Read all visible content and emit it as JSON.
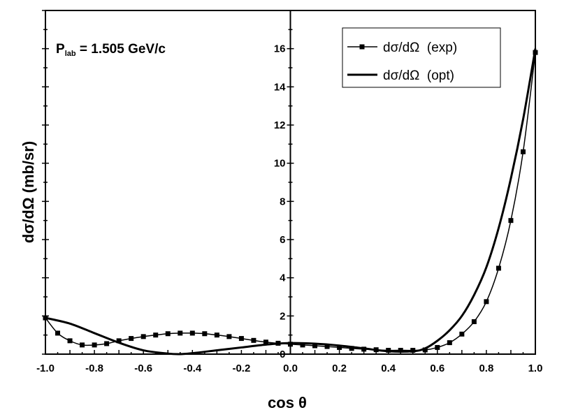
{
  "chart_data": {
    "type": "line",
    "title": "",
    "annotation": {
      "main": "P",
      "sub": "lab",
      "rest": " = 1.505 GeV/c"
    },
    "xlabel": "cos θ",
    "ylabel": "dσ/dΩ (mb/sr)",
    "xlim": [
      -1.0,
      1.0
    ],
    "ylim": [
      0,
      18
    ],
    "x_ticks": [
      -1.0,
      -0.8,
      -0.6,
      -0.4,
      -0.2,
      0.0,
      0.2,
      0.4,
      0.6,
      0.8,
      1.0
    ],
    "x_tick_labels": [
      "-1.0",
      "-0.8",
      "-0.6",
      "-0.4",
      "-0.2",
      "0.0",
      "0.2",
      "0.4",
      "0.6",
      "0.8",
      "1.0"
    ],
    "y_ticks": [
      0,
      2,
      4,
      6,
      8,
      10,
      12,
      14,
      16
    ],
    "y_tick_labels": [
      "0",
      "2",
      "4",
      "6",
      "8",
      "10",
      "12",
      "14",
      "16"
    ],
    "grid": false,
    "legend_position": "top-right",
    "series": [
      {
        "name": "dσ/dΩ  (exp)",
        "style": "line-with-square-markers",
        "x": [
          -1.0,
          -0.95,
          -0.9,
          -0.85,
          -0.8,
          -0.75,
          -0.7,
          -0.65,
          -0.6,
          -0.55,
          -0.5,
          -0.45,
          -0.4,
          -0.35,
          -0.3,
          -0.25,
          -0.2,
          -0.15,
          -0.1,
          -0.05,
          0.0,
          0.05,
          0.1,
          0.15,
          0.2,
          0.25,
          0.3,
          0.35,
          0.4,
          0.45,
          0.5,
          0.55,
          0.6,
          0.65,
          0.7,
          0.75,
          0.8,
          0.85,
          0.9,
          0.95,
          1.0
        ],
        "y": [
          1.9,
          1.1,
          0.7,
          0.48,
          0.48,
          0.55,
          0.7,
          0.82,
          0.92,
          1.0,
          1.07,
          1.1,
          1.1,
          1.07,
          1.0,
          0.92,
          0.82,
          0.72,
          0.63,
          0.57,
          0.52,
          0.48,
          0.44,
          0.4,
          0.35,
          0.3,
          0.26,
          0.23,
          0.2,
          0.2,
          0.2,
          0.22,
          0.35,
          0.6,
          1.05,
          1.7,
          2.75,
          4.5,
          7.0,
          10.6,
          15.8
        ]
      },
      {
        "name": "dσ/dΩ  (opt)",
        "style": "thick-line",
        "x": [
          -1.0,
          -0.9,
          -0.8,
          -0.7,
          -0.6,
          -0.5,
          -0.45,
          -0.4,
          -0.3,
          -0.2,
          -0.1,
          0.0,
          0.1,
          0.2,
          0.3,
          0.4,
          0.5,
          0.55,
          0.6,
          0.65,
          0.7,
          0.75,
          0.8,
          0.85,
          0.9,
          0.95,
          1.0
        ],
        "y": [
          1.9,
          1.6,
          1.1,
          0.6,
          0.2,
          0.03,
          0.0,
          0.05,
          0.2,
          0.35,
          0.5,
          0.58,
          0.55,
          0.45,
          0.3,
          0.15,
          0.15,
          0.3,
          0.7,
          1.25,
          2.0,
          3.1,
          4.55,
          6.6,
          9.2,
          12.3,
          16.0
        ]
      }
    ]
  }
}
